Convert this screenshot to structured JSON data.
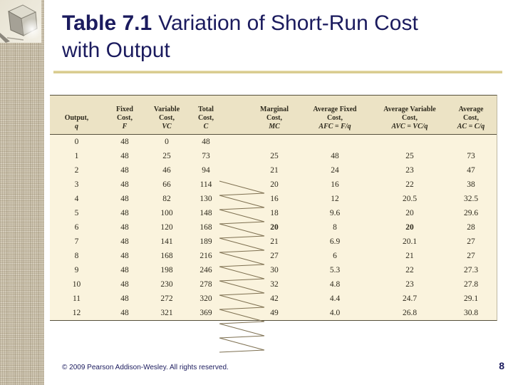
{
  "slide": {
    "title_prefix": "Table 7.1",
    "title_rest": "Variation of Short-Run Cost with Output",
    "footer": "© 2009 Pearson Addison-Wesley. All rights reserved.",
    "page_number": "8"
  },
  "colors": {
    "title_navy": "#1b1b5e",
    "gold_line": "#d9cc90",
    "table_body_bg": "#faf3dd",
    "table_header_bg": "#ece3c5",
    "table_rule": "#55503c",
    "zigzag_line": "#7e7051",
    "sidebar_base": "#cfc6b1"
  },
  "icons": {
    "cube_logo": "metallic-3d-cube"
  },
  "table": {
    "columns": [
      {
        "lines": [
          "Output,"
        ],
        "symbol": "q"
      },
      {
        "lines": [
          "Fixed",
          "Cost,"
        ],
        "symbol": "F"
      },
      {
        "lines": [
          "Variable",
          "Cost,"
        ],
        "symbol": "VC"
      },
      {
        "lines": [
          "Total",
          "Cost,"
        ],
        "symbol": "C"
      },
      {
        "lines": [
          "Marginal",
          "Cost,"
        ],
        "symbol": "MC"
      },
      {
        "lines": [
          "Average Fixed",
          "Cost,"
        ],
        "symbol": "AFC = F/q"
      },
      {
        "lines": [
          "Average Variable",
          "Cost,"
        ],
        "symbol": "AVC = VC/q"
      },
      {
        "lines": [
          "Average",
          "Cost,"
        ],
        "symbol": "AC = C/q"
      }
    ],
    "rows": [
      [
        "0",
        "48",
        "0",
        "48",
        "",
        "",
        "",
        ""
      ],
      [
        "1",
        "48",
        "25",
        "73",
        "25",
        "48",
        "25",
        "73"
      ],
      [
        "2",
        "48",
        "46",
        "94",
        "21",
        "24",
        "23",
        "47"
      ],
      [
        "3",
        "48",
        "66",
        "114",
        "20",
        "16",
        "22",
        "38"
      ],
      [
        "4",
        "48",
        "82",
        "130",
        "16",
        "12",
        "20.5",
        "32.5"
      ],
      [
        "5",
        "48",
        "100",
        "148",
        "18",
        "9.6",
        "20",
        "29.6"
      ],
      [
        "6",
        "48",
        "120",
        "168",
        "20",
        "8",
        "20",
        "28"
      ],
      [
        "7",
        "48",
        "141",
        "189",
        "21",
        "6.9",
        "20.1",
        "27"
      ],
      [
        "8",
        "48",
        "168",
        "216",
        "27",
        "6",
        "21",
        "27"
      ],
      [
        "9",
        "48",
        "198",
        "246",
        "30",
        "5.3",
        "22",
        "27.3"
      ],
      [
        "10",
        "48",
        "230",
        "278",
        "32",
        "4.8",
        "23",
        "27.8"
      ],
      [
        "11",
        "48",
        "272",
        "320",
        "42",
        "4.4",
        "24.7",
        "29.1"
      ],
      [
        "12",
        "48",
        "321",
        "369",
        "49",
        "4.0",
        "26.8",
        "30.8"
      ]
    ],
    "bold_cells": [
      [
        6,
        4
      ],
      [
        6,
        6
      ]
    ],
    "zigzag_rows": 12
  }
}
